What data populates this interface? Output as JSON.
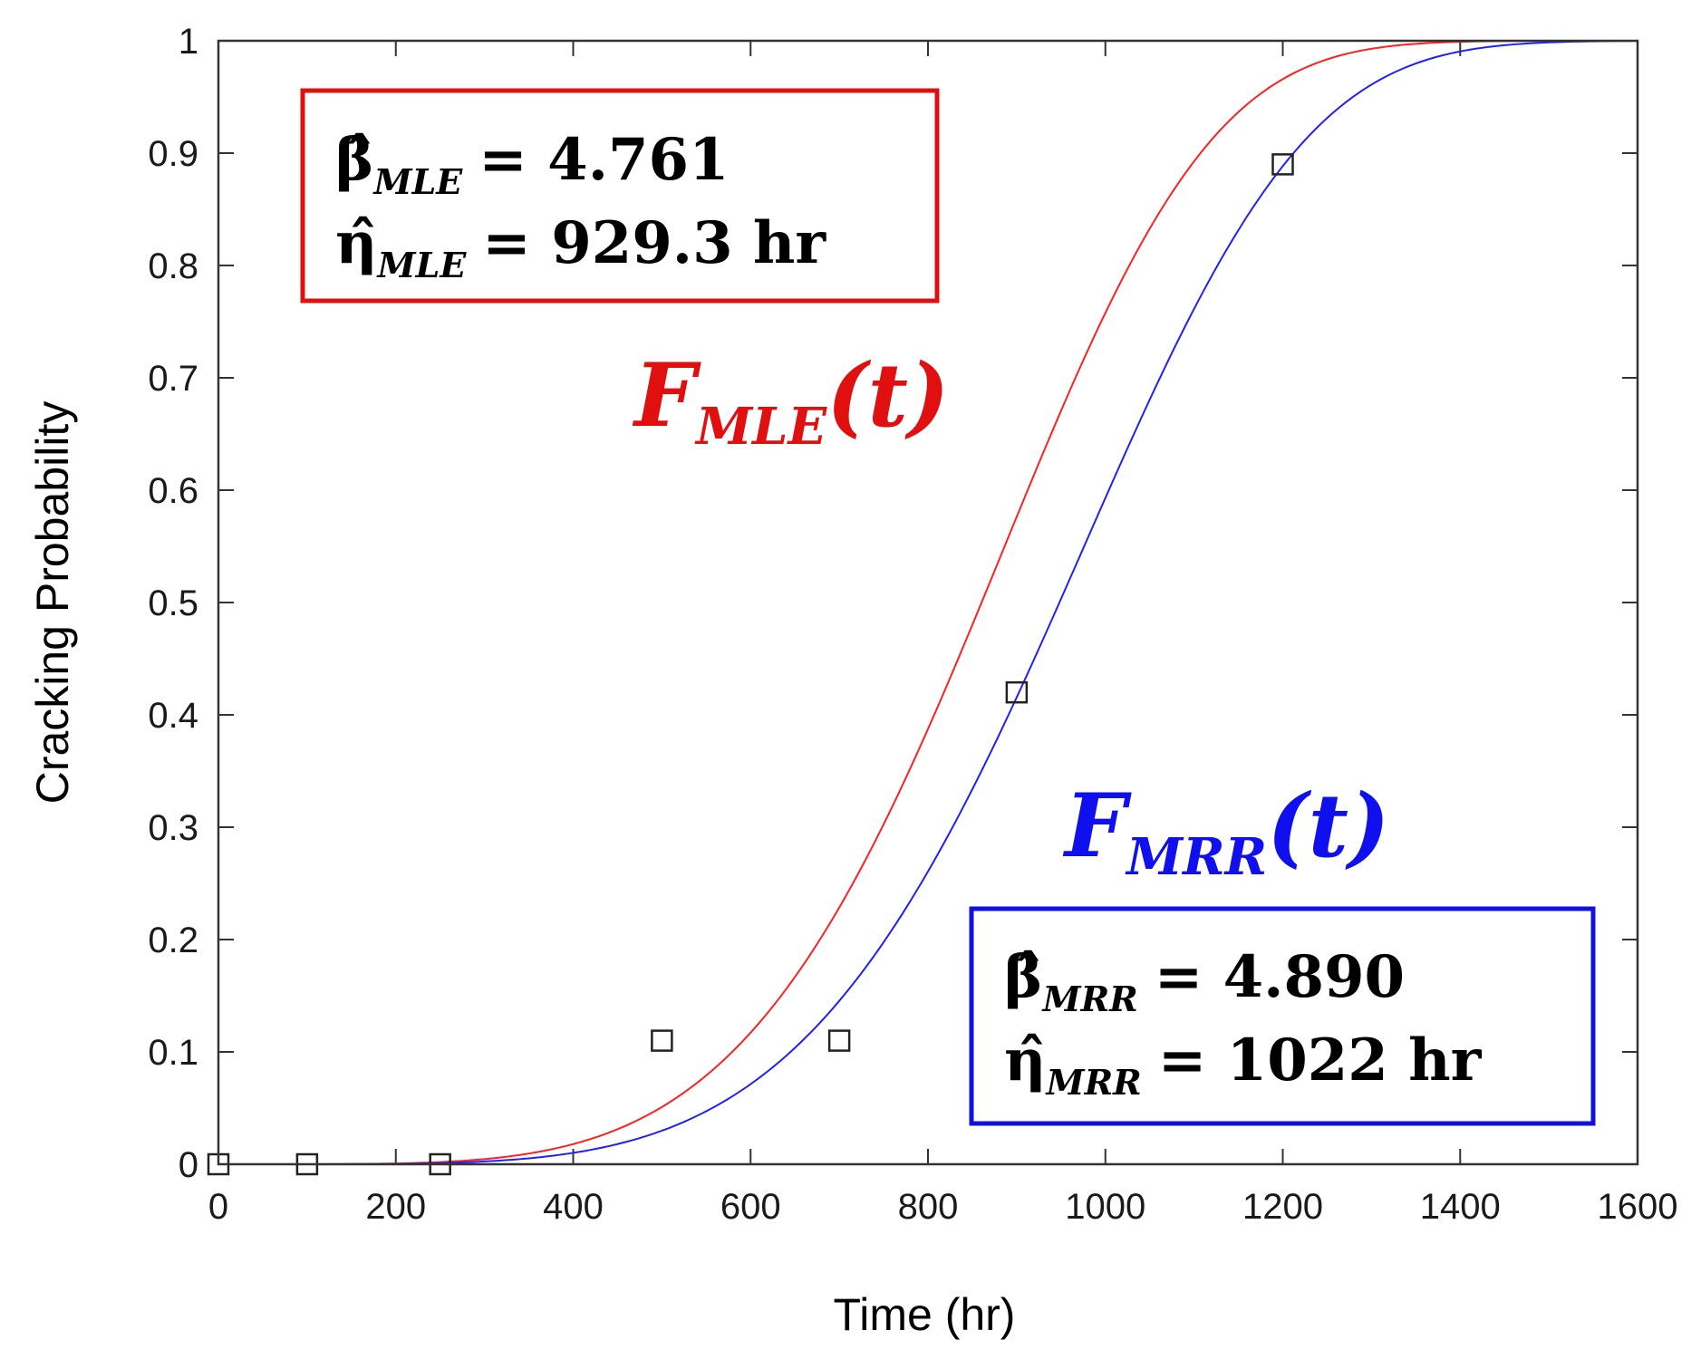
{
  "chart_data": {
    "type": "line",
    "xlabel": "Time (hr)",
    "ylabel": "Cracking Probability",
    "xlim": [
      0,
      1600
    ],
    "ylim": [
      0,
      1
    ],
    "x_ticks": [
      0,
      200,
      400,
      600,
      800,
      1000,
      1200,
      1400,
      1600
    ],
    "y_ticks": [
      0,
      0.1,
      0.2,
      0.3,
      0.4,
      0.5,
      0.6,
      0.7,
      0.8,
      0.9,
      1
    ],
    "x_tick_labels": [
      "0",
      "200",
      "400",
      "600",
      "800",
      "1000",
      "1200",
      "1400",
      "1600"
    ],
    "y_tick_labels": [
      "0",
      "0.1",
      "0.2",
      "0.3",
      "0.4",
      "0.5",
      "0.6",
      "0.7",
      "0.8",
      "0.9",
      "1"
    ],
    "grid": false,
    "series": [
      {
        "color": "#ff2020",
        "model": "weibull_cdf",
        "beta": 4.761,
        "eta": 929.3
      },
      {
        "color": "#2020ff",
        "model": "weibull_cdf",
        "beta": 4.89,
        "eta": 1022
      }
    ],
    "points": {
      "marker": "square",
      "x": [
        0,
        100,
        250,
        500,
        700,
        900,
        1200
      ],
      "y": [
        0,
        0,
        0,
        0.11,
        0.11,
        0.42,
        0.89
      ]
    },
    "annotations": {
      "mle_box": {
        "color": "#e01010",
        "beta_symbol": "β̂",
        "beta_sub": "MLE",
        "beta_text": "= 4.761",
        "eta_symbol": "η̂",
        "eta_sub": "MLE",
        "eta_text": "= 929.3 hr"
      },
      "mrr_box": {
        "color": "#1010e0",
        "beta_symbol": "β̂",
        "beta_sub": "MRR",
        "beta_text": "= 4.890",
        "eta_symbol": "η̂",
        "eta_sub": "MRR",
        "eta_text": "= 1022 hr"
      },
      "mle_label": {
        "main": "F",
        "sub": "MLE",
        "arg": "(t)",
        "color": "#e01010"
      },
      "mrr_label": {
        "main": "F",
        "sub": "MRR",
        "arg": "(t)",
        "color": "#1010ee"
      }
    }
  }
}
